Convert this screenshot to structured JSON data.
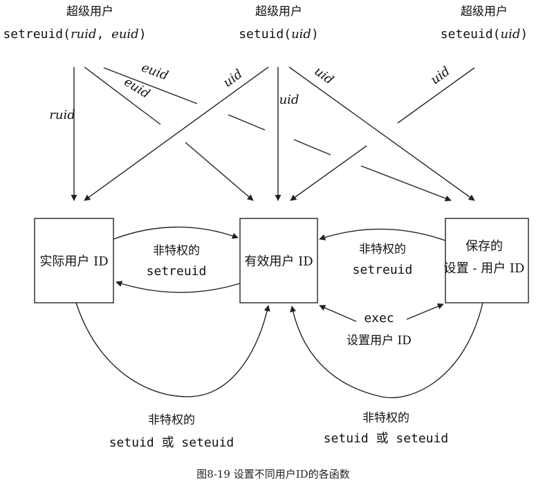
{
  "top_labels": {
    "left": {
      "title": "超级用户",
      "func": "setreuid(",
      "arg1": "ruid",
      "sep": ", ",
      "arg2": "euid",
      "close": ")"
    },
    "middle": {
      "title": "超级用户",
      "func": "setuid(",
      "arg": "uid",
      "close": ")"
    },
    "right": {
      "title": "超级用户",
      "func": "seteuid(",
      "arg": "uid",
      "close": ")"
    }
  },
  "line_labels": {
    "ruid": "ruid",
    "euid_upper": "euid",
    "euid_lower": "euid",
    "uid_cross": "uid",
    "uid_down": "uid",
    "uid_diag": "uid",
    "uid_right": "uid"
  },
  "boxes": {
    "real": "实际用户 ID",
    "effective": "有效用户 ID",
    "saved_line1": "保存的",
    "saved_line2": "设置 - 用户 ID"
  },
  "transitions": {
    "left_pair_line1": "非特权的",
    "left_pair_line2": "setreuid",
    "right_pair_line1": "非特权的",
    "right_pair_line2": "setreuid",
    "exec_line1": "exec",
    "exec_line2": "设置用户 ID",
    "bottom_left_line1": "非特权的",
    "bottom_left_line2": "setuid 或 seteuid",
    "bottom_right_line1": "非特权的",
    "bottom_right_line2": "setuid 或 seteuid"
  },
  "caption": "图8-19 设置不同用户ID的各函数"
}
